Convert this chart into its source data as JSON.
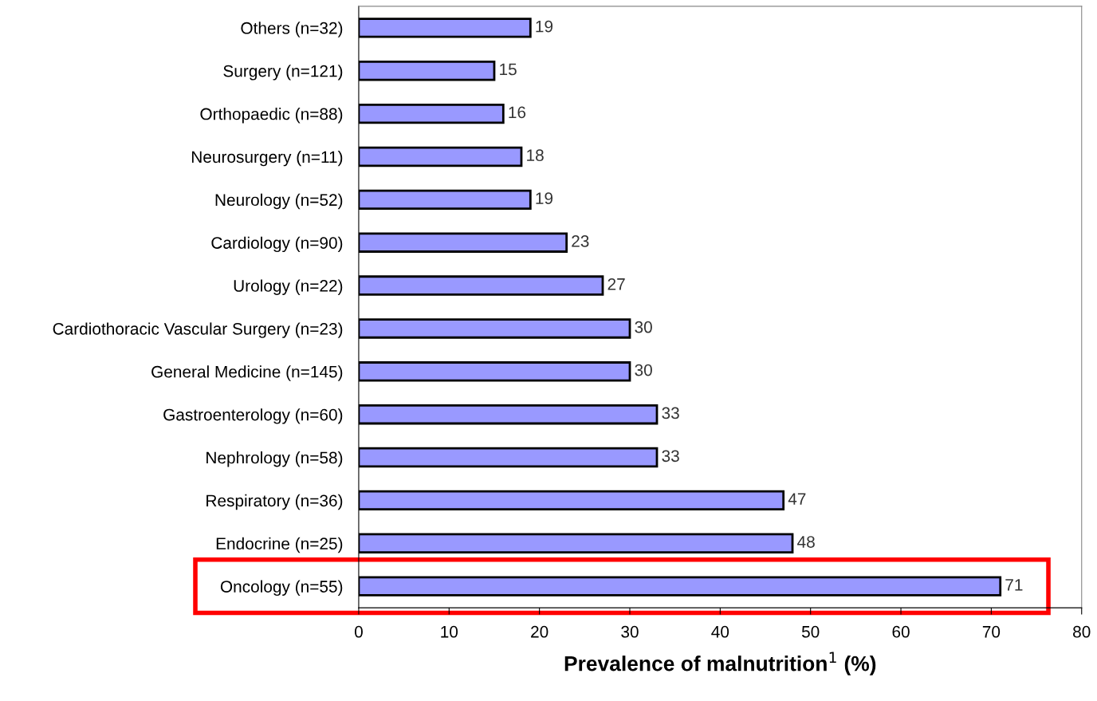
{
  "chart_data": {
    "type": "bar",
    "orientation": "horizontal",
    "categories": [
      "Others (n=32)",
      "Surgery (n=121)",
      "Orthopaedic (n=88)",
      "Neurosurgery (n=11)",
      "Neurology (n=52)",
      "Cardiology (n=90)",
      "Urology (n=22)",
      "Cardiothoracic Vascular Surgery (n=23)",
      "General Medicine (n=145)",
      "Gastroenterology (n=60)",
      "Nephrology (n=58)",
      "Respiratory (n=36)",
      "Endocrine (n=25)",
      "Oncology (n=55)"
    ],
    "values": [
      19,
      15,
      16,
      18,
      19,
      23,
      27,
      30,
      30,
      33,
      33,
      47,
      48,
      71
    ],
    "color": "#9999ff",
    "data_labels": true,
    "xlabel": "Prevalence of malnutrition$^{1}$ (%)",
    "xlim": [
      0,
      80
    ],
    "xticks": [
      0,
      10,
      20,
      30,
      40,
      50,
      60,
      70,
      80
    ],
    "grid": false
  }
}
